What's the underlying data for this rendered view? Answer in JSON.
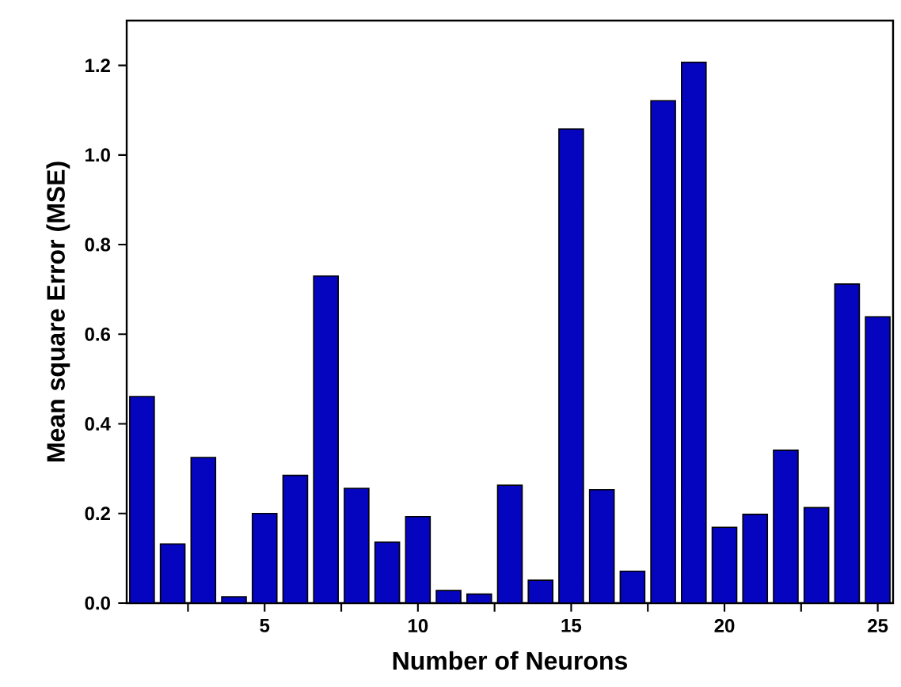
{
  "chart_data": {
    "type": "bar",
    "xlabel": "Number of Neurons",
    "ylabel": "Mean square Error (MSE)",
    "x": [
      1,
      2,
      3,
      4,
      5,
      6,
      7,
      8,
      9,
      10,
      11,
      12,
      13,
      14,
      15,
      16,
      17,
      18,
      19,
      20,
      21,
      22,
      23,
      24,
      25
    ],
    "values": [
      0.461,
      0.132,
      0.325,
      0.014,
      0.2,
      0.285,
      0.73,
      0.256,
      0.136,
      0.193,
      0.028,
      0.02,
      0.263,
      0.051,
      1.058,
      0.253,
      0.071,
      1.121,
      1.207,
      0.169,
      0.198,
      0.341,
      0.213,
      0.712,
      0.639
    ],
    "color": "#0505c0",
    "xlim": [
      0.5,
      25.5
    ],
    "ylim": [
      0,
      1.3
    ],
    "xticks": [
      {
        "value": 2.5,
        "label": null
      },
      5,
      {
        "value": 7.5,
        "label": null
      },
      10,
      {
        "value": 12.5,
        "label": null
      },
      15,
      {
        "value": 17.5,
        "label": null
      },
      20,
      {
        "value": 22.5,
        "label": null
      },
      25
    ],
    "yticks": [
      {
        "value": 0,
        "label": "0.0"
      },
      0.2,
      0.4,
      0.6,
      0.8,
      {
        "value": 1,
        "label": "1.0"
      },
      1.2
    ],
    "grid": false
  }
}
